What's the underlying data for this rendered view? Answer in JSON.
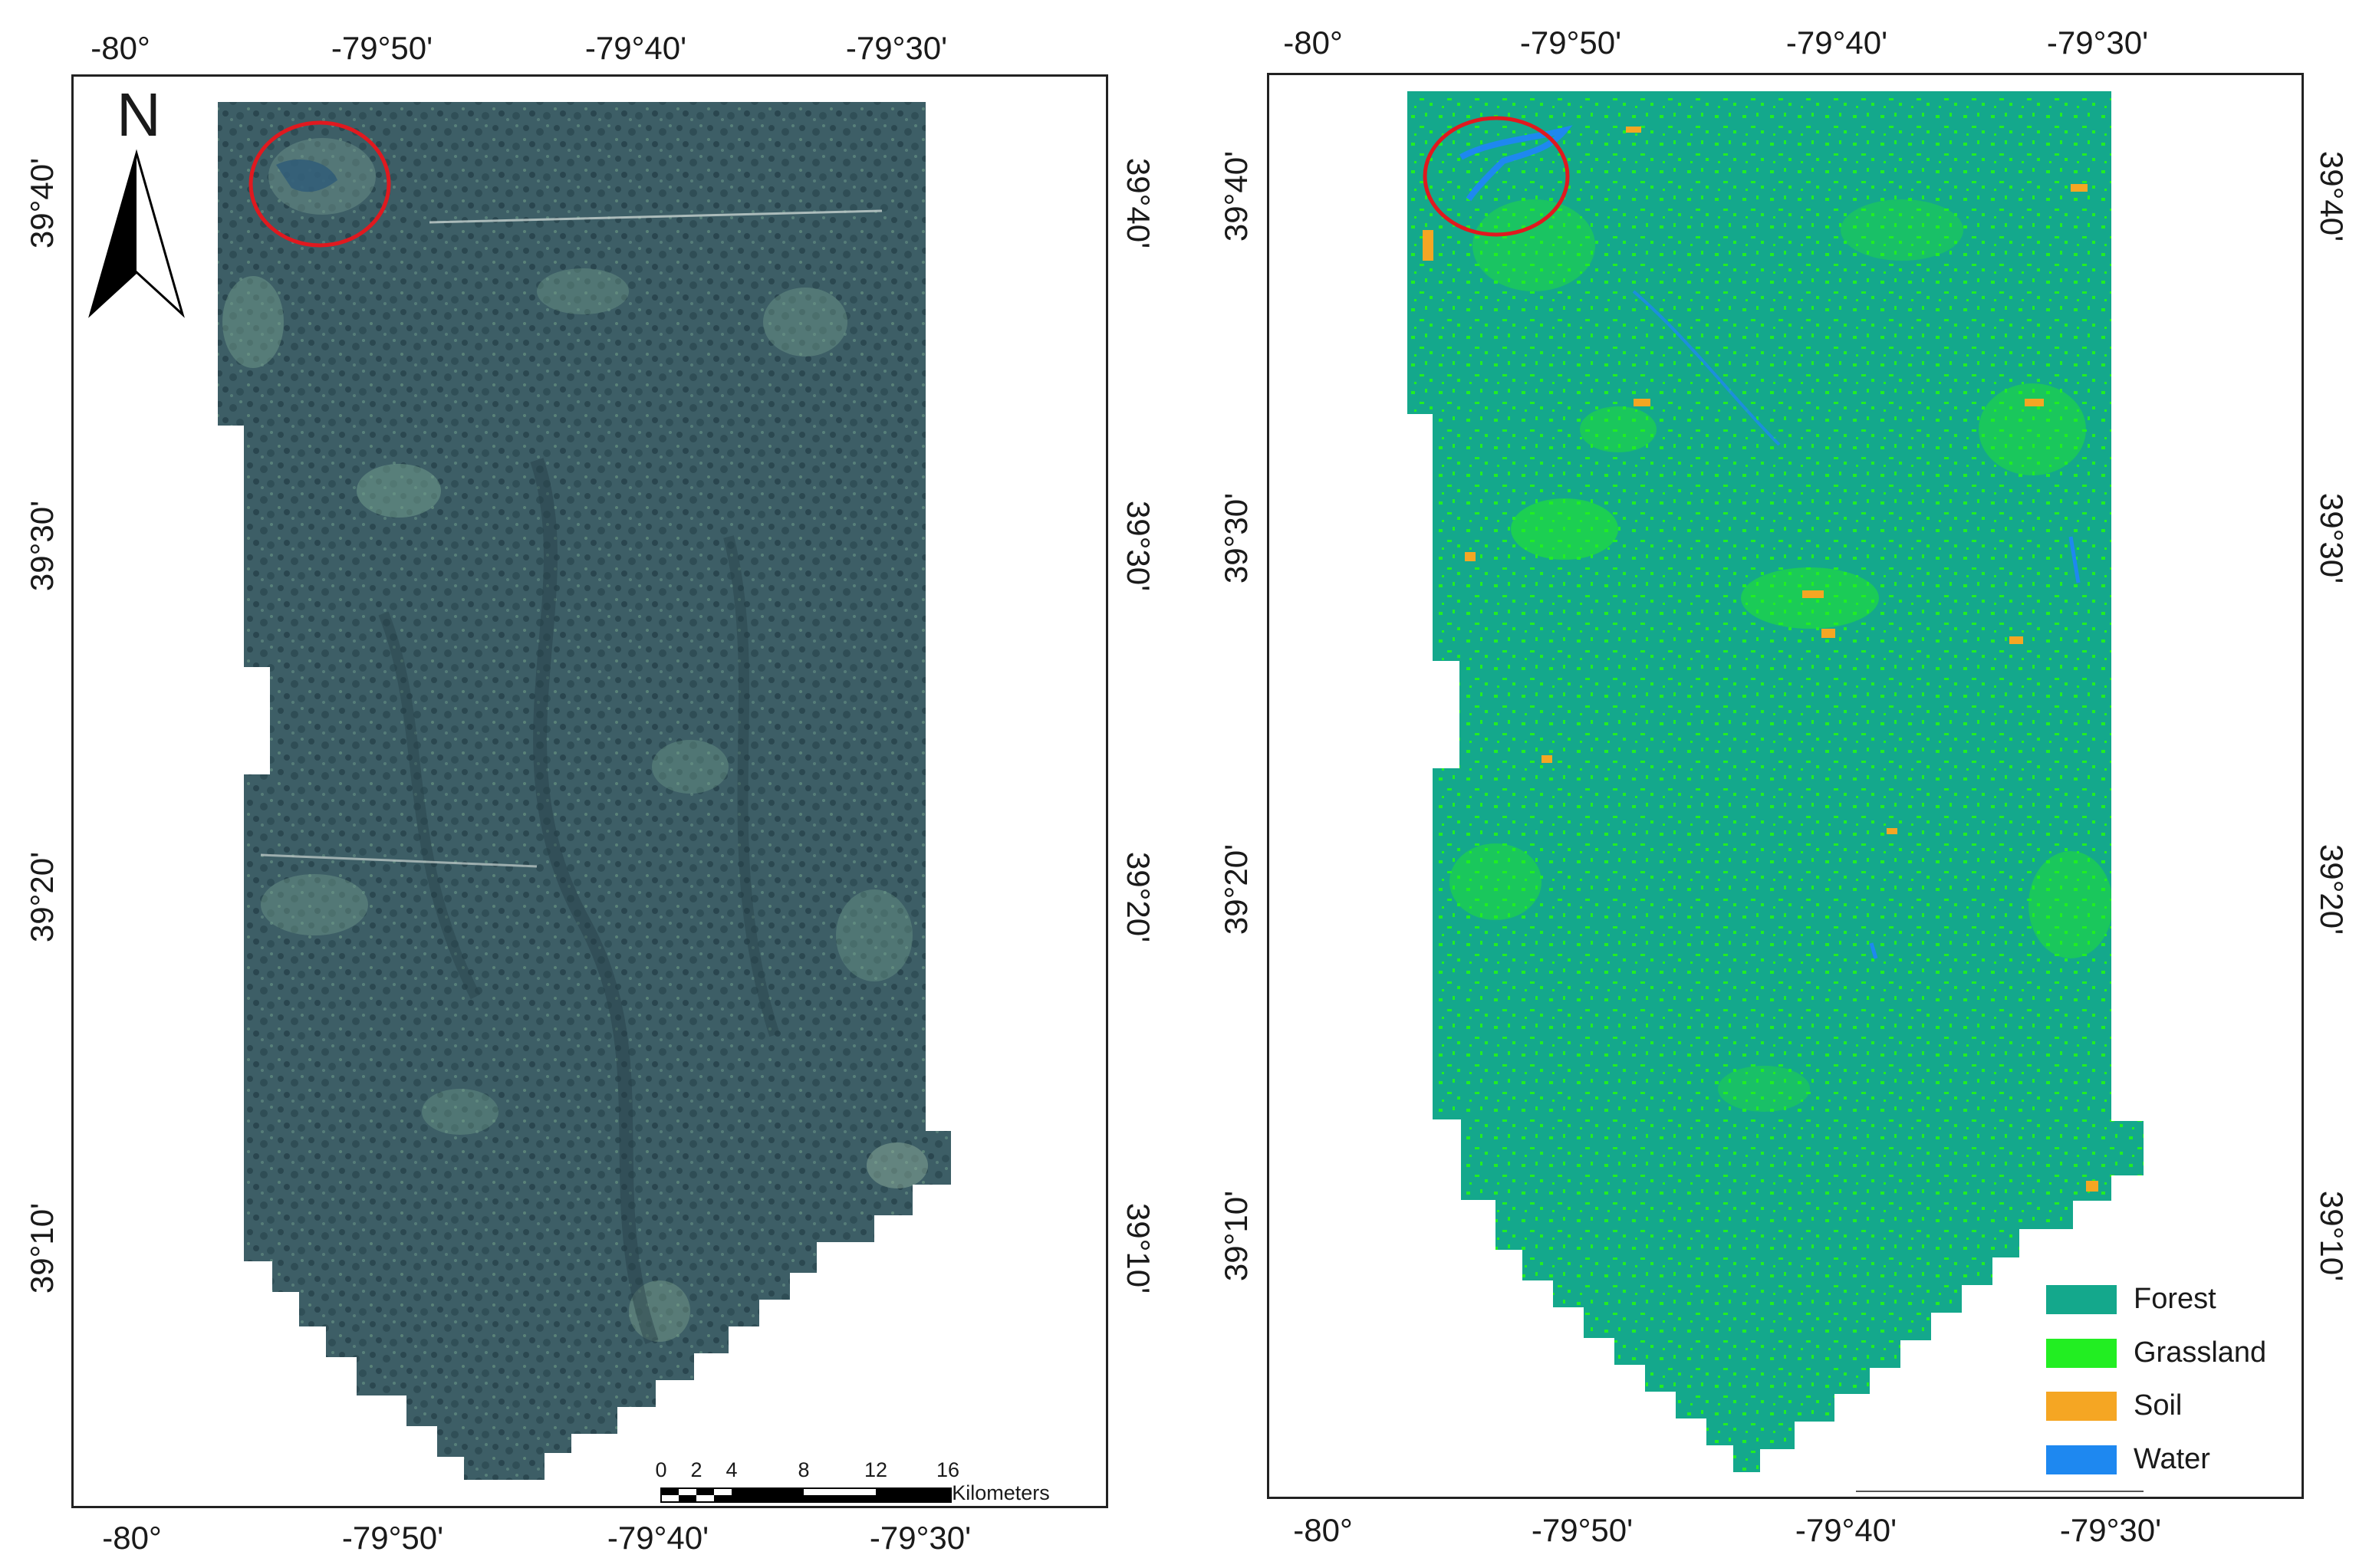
{
  "left_map": {
    "top_ticks": [
      "-80°",
      "-79°50'",
      "-79°40'",
      "-79°30'"
    ],
    "bottom_ticks": [
      "-80°",
      "-79°50'",
      "-79°40'",
      "-79°30'"
    ],
    "left_ticks": [
      "39°40'",
      "39°30'",
      "39°20'",
      "39°10'"
    ],
    "right_ticks": [
      "39°40'",
      "39°30'",
      "39°20'",
      "39°10'"
    ],
    "north_label": "N",
    "scale_bar": {
      "labels": [
        "0",
        "2",
        "4",
        "8",
        "12",
        "16"
      ],
      "unit": "Kilometers"
    }
  },
  "right_map": {
    "top_ticks": [
      "-80°",
      "-79°50'",
      "-79°40'",
      "-79°30'"
    ],
    "bottom_ticks": [
      "-80°",
      "-79°50'",
      "-79°40'",
      "-79°30'"
    ],
    "left_ticks": [
      "39°40'",
      "39°30'",
      "39°20'",
      "39°10'"
    ],
    "right_ticks": [
      "39°40'",
      "39°30'",
      "39°20'",
      "39°10'"
    ],
    "legend": [
      {
        "label": "Forest",
        "color": "#14a88c"
      },
      {
        "label": "Grassland",
        "color": "#22ee22"
      },
      {
        "label": "Soil",
        "color": "#f5a623"
      },
      {
        "label": "Water",
        "color": "#1e88f0"
      }
    ]
  },
  "colors": {
    "imagery_base": "#3d5e66",
    "imagery_light": "#6f9a8a",
    "imagery_dark": "#253e46",
    "forest": "#14a88c",
    "grassland": "#22ee22",
    "soil": "#f5a623",
    "water": "#1e88f0",
    "highlight_circle": "#e0191f"
  }
}
